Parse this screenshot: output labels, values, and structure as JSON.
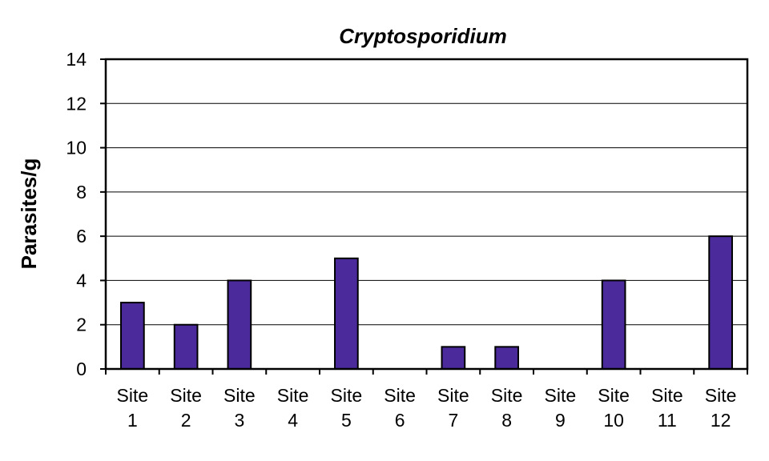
{
  "chart_data": {
    "type": "bar",
    "title": "Cryptosporidium",
    "xlabel": "",
    "ylabel": "Parasites/g",
    "ylim": [
      0,
      14
    ],
    "yticks": [
      0,
      2,
      4,
      6,
      8,
      10,
      12,
      14
    ],
    "grid": true,
    "categories": [
      [
        "Site",
        "1"
      ],
      [
        "Site",
        "2"
      ],
      [
        "Site",
        "3"
      ],
      [
        "Site",
        "4"
      ],
      [
        "Site",
        "5"
      ],
      [
        "Site",
        "6"
      ],
      [
        "Site",
        "7"
      ],
      [
        "Site",
        "8"
      ],
      [
        "Site",
        "9"
      ],
      [
        "Site",
        "10"
      ],
      [
        "Site",
        "11"
      ],
      [
        "Site",
        "12"
      ]
    ],
    "values": [
      3,
      2,
      4,
      0,
      5,
      0,
      1,
      1,
      0,
      4,
      0,
      6
    ],
    "bar_color": "#4b2a9c"
  }
}
